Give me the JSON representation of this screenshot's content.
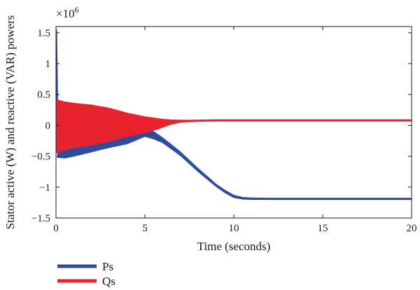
{
  "chart_data": {
    "type": "line",
    "title": "",
    "xlabel": "Time (seconds)",
    "ylabel": "Stator active (W) and reactive (VAR) powers",
    "y_multiplier_base": "×10",
    "y_multiplier_exp": "6",
    "xlim": [
      0,
      20
    ],
    "ylim": [
      -1.5,
      1.6
    ],
    "x_ticks": [
      0,
      5,
      10,
      15,
      20
    ],
    "x_tick_labels": [
      "0",
      "5",
      "10",
      "15",
      "20"
    ],
    "y_ticks": [
      1.5,
      1,
      0.5,
      0,
      -0.5,
      -1,
      -1.5
    ],
    "y_tick_labels": [
      "1.5",
      "1",
      "0.5",
      "0",
      "−0.5",
      "−1",
      "−1.5"
    ],
    "grid": false,
    "legend_position": "below",
    "series": [
      {
        "name": "Ps",
        "color": "#2e4b9e",
        "x": [
          0,
          0.1,
          0.5,
          1,
          2,
          3,
          4,
          5,
          5.5,
          6,
          7,
          8,
          9,
          9.5,
          10,
          10.5,
          11,
          12,
          13,
          14,
          15,
          16,
          17,
          18,
          19,
          20
        ],
        "values": [
          1.55,
          -0.4,
          -0.44,
          -0.42,
          -0.36,
          -0.3,
          -0.24,
          -0.12,
          -0.16,
          -0.24,
          -0.46,
          -0.72,
          -0.97,
          -1.07,
          -1.15,
          -1.18,
          -1.185,
          -1.19,
          -1.19,
          -1.19,
          -1.19,
          -1.19,
          -1.19,
          -1.19,
          -1.19,
          -1.19
        ],
        "envelope_upper": [
          1.55,
          -0.3,
          -0.34,
          -0.32,
          -0.3,
          -0.25,
          -0.19,
          -0.08,
          -0.1,
          -0.2,
          -0.43,
          -0.7,
          -0.95,
          -1.05,
          -1.13,
          -1.165,
          -1.175,
          -1.18,
          -1.18,
          -1.18,
          -1.18,
          -1.18,
          -1.18,
          -1.18,
          -1.18,
          -1.18
        ],
        "envelope_lower": [
          1.55,
          -0.52,
          -0.53,
          -0.5,
          -0.43,
          -0.36,
          -0.3,
          -0.18,
          -0.22,
          -0.28,
          -0.49,
          -0.75,
          -0.99,
          -1.09,
          -1.17,
          -1.195,
          -1.2,
          -1.2,
          -1.2,
          -1.2,
          -1.2,
          -1.2,
          -1.2,
          -1.2,
          -1.2,
          -1.2
        ]
      },
      {
        "name": "Qs",
        "color": "#e8232d",
        "x": [
          0,
          0.5,
          1,
          2,
          3,
          4,
          5,
          5.5,
          6,
          6.5,
          7,
          8,
          9,
          10,
          12,
          15,
          20
        ],
        "values": [
          0,
          0,
          0,
          0,
          0,
          0,
          0,
          0.02,
          0.04,
          0.05,
          0.07,
          0.075,
          0.08,
          0.08,
          0.08,
          0.08,
          0.08
        ],
        "envelope_upper": [
          0.42,
          0.38,
          0.36,
          0.33,
          0.28,
          0.2,
          0.14,
          0.12,
          0.1,
          0.09,
          0.085,
          0.085,
          0.09,
          0.09,
          0.09,
          0.09,
          0.09
        ],
        "envelope_lower": [
          -0.45,
          -0.4,
          -0.36,
          -0.32,
          -0.26,
          -0.18,
          -0.12,
          -0.08,
          -0.03,
          0.02,
          0.05,
          0.065,
          0.07,
          0.07,
          0.07,
          0.07,
          0.07
        ]
      }
    ]
  },
  "legend": {
    "items": [
      {
        "label": "Ps",
        "color": "#2e4b9e"
      },
      {
        "label": "Qs",
        "color": "#e8232d"
      }
    ]
  }
}
